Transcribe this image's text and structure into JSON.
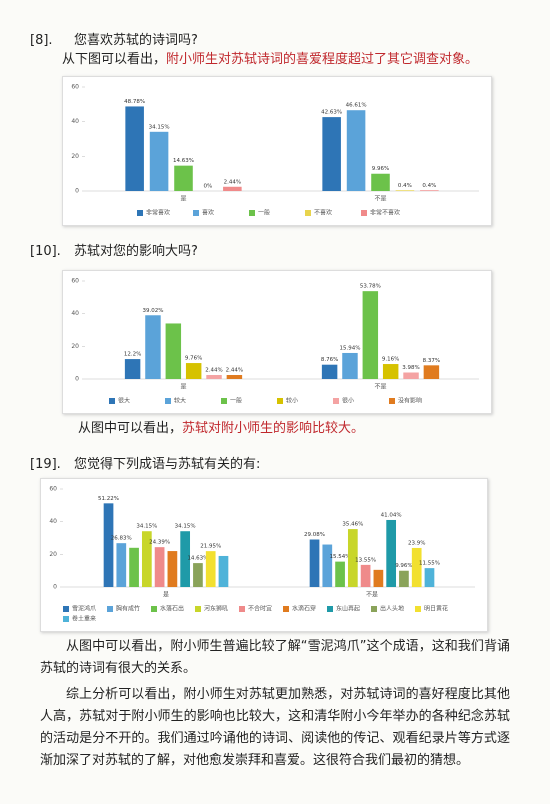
{
  "q8": {
    "number": "[8].",
    "question": "您喜欢苏轼的诗词吗?",
    "note_plain": "从下图可以看出，",
    "note_highlight": "附小师生对苏轼诗词的喜爱程度超过了其它调查对象。"
  },
  "q10": {
    "number": "[10].",
    "question": "苏轼对您的影响大吗?",
    "note_plain": "从图中可以看出，",
    "note_highlight": "苏轼对附小师生的影响比较大。"
  },
  "q19": {
    "number": "[19].",
    "question": "您觉得下列成语与苏轼有关的有:"
  },
  "summary": [
    "从图中可以看出，附小师生普遍比较了解“雪泥鸿爪”这个成语，这和我们背诵苏轼的诗词有很大的关系。",
    "综上分析可以看出，附小师生对苏轼更加熟悉，对苏轼诗词的喜好程度比其他人高，苏轼对于附小师生的影响也比较大，这和清华附小今年举办的各种纪念苏轼的活动是分不开的。我们通过吟诵他的诗词、阅读他的传记、观看纪录片等方式逐渐加深了对苏轼的了解，对他愈发崇拜和喜爱。这很符合我们最初的猜想。"
  ],
  "chart_data": [
    {
      "type": "bar",
      "categories": [
        "是",
        "不是"
      ],
      "ylim": [
        0,
        60
      ],
      "yticks": [
        0,
        20,
        40,
        60
      ],
      "legend": "bottom",
      "series": [
        {
          "name": "非常喜欢",
          "color": "#2e75b6",
          "values": [
            48.78,
            42.63
          ],
          "value_labels": [
            "48.78%",
            "42.63%"
          ]
        },
        {
          "name": "喜欢",
          "color": "#5ba3d9",
          "values": [
            34.15,
            46.61
          ],
          "value_labels": [
            "34.15%",
            "46.61%"
          ]
        },
        {
          "name": "一般",
          "color": "#6cc24a",
          "values": [
            14.63,
            9.96
          ],
          "value_labels": [
            "14.63%",
            "9.96%"
          ]
        },
        {
          "name": "不喜欢",
          "color": "#e8d44d",
          "values": [
            0,
            0.4
          ],
          "value_labels": [
            "0%",
            "0.4%"
          ]
        },
        {
          "name": "非常不喜欢",
          "color": "#f08a8a",
          "values": [
            2.44,
            0.4
          ],
          "value_labels": [
            "2.44%",
            "0.4%"
          ]
        }
      ]
    },
    {
      "type": "bar",
      "categories": [
        "是",
        "不是"
      ],
      "ylim": [
        0,
        60
      ],
      "yticks": [
        0,
        20,
        40,
        60
      ],
      "legend": "bottom",
      "series": [
        {
          "name": "很大",
          "color": "#2e75b6",
          "values": [
            12.2,
            8.76
          ],
          "value_labels": [
            "12.2%",
            "8.76%"
          ]
        },
        {
          "name": "较大",
          "color": "#5ba3d9",
          "values": [
            39.02,
            15.94
          ],
          "value_labels": [
            "39.02%",
            "15.94%"
          ]
        },
        {
          "name": "一般",
          "color": "#6cc24a",
          "values": [
            34,
            53.78
          ],
          "value_labels": [
            null,
            "53.78%"
          ]
        },
        {
          "name": "较小",
          "color": "#d6c200",
          "values": [
            9.76,
            9.16
          ],
          "value_labels": [
            "9.76%",
            "9.16%"
          ]
        },
        {
          "name": "很小",
          "color": "#f4a3a3",
          "values": [
            2.44,
            3.98
          ],
          "value_labels": [
            "2.44%",
            "3.98%"
          ]
        },
        {
          "name": "没有影响",
          "color": "#e07b1f",
          "values": [
            2.44,
            8.37
          ],
          "value_labels": [
            "2.44%",
            "8.37%"
          ]
        }
      ]
    },
    {
      "type": "bar",
      "categories": [
        "是",
        "不是"
      ],
      "ylim": [
        0,
        60
      ],
      "yticks": [
        0,
        20,
        40,
        60
      ],
      "legend": "bottom",
      "series": [
        {
          "name": "雪泥鸿爪",
          "color": "#2e75b6",
          "values": [
            51.22,
            29.08
          ],
          "value_labels": [
            "51.22%",
            "29.08%"
          ]
        },
        {
          "name": "胸有成竹",
          "color": "#5ba3d9",
          "values": [
            26.83,
            26
          ],
          "value_labels": [
            "26.83%",
            null
          ]
        },
        {
          "name": "水落石出",
          "color": "#6cc24a",
          "values": [
            24,
            15.54
          ],
          "value_labels": [
            null,
            "15.54%"
          ]
        },
        {
          "name": "河东狮吼",
          "color": "#c8d62a",
          "values": [
            34.15,
            35.46
          ],
          "value_labels": [
            "34.15%",
            "35.46%"
          ]
        },
        {
          "name": "不合时宜",
          "color": "#ef8a8a",
          "values": [
            24.39,
            13.55
          ],
          "value_labels": [
            "24.39%",
            "13.55%"
          ]
        },
        {
          "name": "水滴石穿",
          "color": "#e07b1f",
          "values": [
            22,
            10.5
          ],
          "value_labels": [
            null,
            null
          ]
        },
        {
          "name": "东山再起",
          "color": "#1f9aa8",
          "values": [
            34.15,
            41.04
          ],
          "value_labels": [
            "34.15%",
            "41.04%"
          ]
        },
        {
          "name": "出人头地",
          "color": "#8aa35a",
          "values": [
            14.63,
            9.96
          ],
          "value_labels": [
            "14.63%",
            "9.96%"
          ]
        },
        {
          "name": "明日黄花",
          "color": "#f2e030",
          "values": [
            21.95,
            23.9
          ],
          "value_labels": [
            "21.95%",
            "23.9%"
          ]
        },
        {
          "name": "卷土重来",
          "color": "#4fb3d9",
          "values": [
            19,
            11.55
          ],
          "value_labels": [
            null,
            "11.55%"
          ]
        }
      ]
    }
  ]
}
